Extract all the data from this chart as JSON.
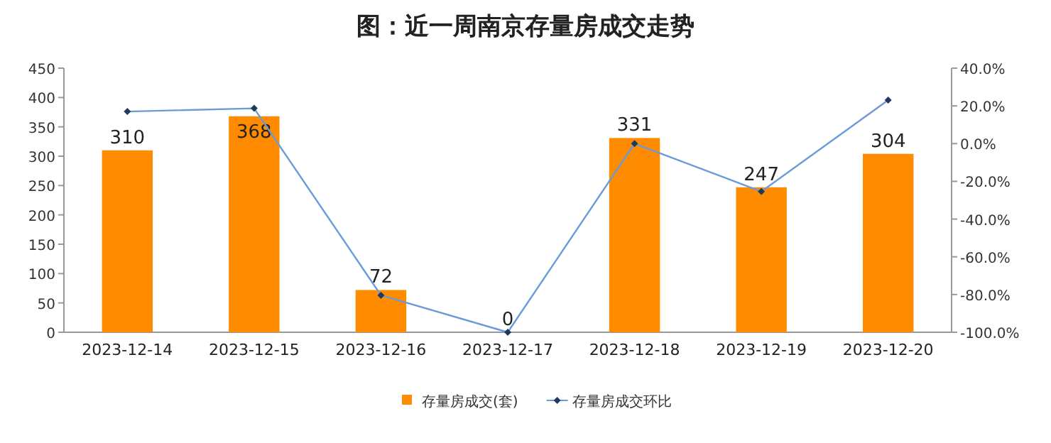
{
  "chart_data": {
    "type": "bar",
    "title": "图：近一周南京存量房成交走势",
    "categories": [
      "2023-12-14",
      "2023-12-15",
      "2023-12-16",
      "2023-12-17",
      "2023-12-18",
      "2023-12-19",
      "2023-12-20"
    ],
    "series": [
      {
        "name": "存量房成交(套)",
        "color": "#ff8c00",
        "values": [
          310,
          368,
          72,
          0,
          331,
          247,
          304
        ],
        "value_labels": [
          "310",
          "368",
          "72",
          "0",
          "331",
          "247",
          "304"
        ]
      },
      {
        "name": "存量房成交环比",
        "type": "line",
        "axis": "y2",
        "color": "#6a9bd8",
        "marker": "diamond",
        "values": [
          17,
          18.7,
          -80.4,
          -100,
          0,
          -25.4,
          23.1
        ]
      }
    ],
    "ylim": [
      0,
      450
    ],
    "yticks": [
      0,
      50,
      100,
      150,
      200,
      250,
      300,
      350,
      400,
      450
    ],
    "y2lim": [
      -100,
      40
    ],
    "y2ticks": [
      {
        "value": -100,
        "label": "-100.0%"
      },
      {
        "value": -80,
        "label": "-80.0%"
      },
      {
        "value": -60,
        "label": "-60.0%"
      },
      {
        "value": -40,
        "label": "-40.0%"
      },
      {
        "value": -20,
        "label": "-20.0%"
      },
      {
        "value": 0,
        "label": "0.0%"
      },
      {
        "value": 20,
        "label": "20.0%"
      },
      {
        "value": 40,
        "label": "40.0%"
      }
    ],
    "legend": "bottom"
  }
}
